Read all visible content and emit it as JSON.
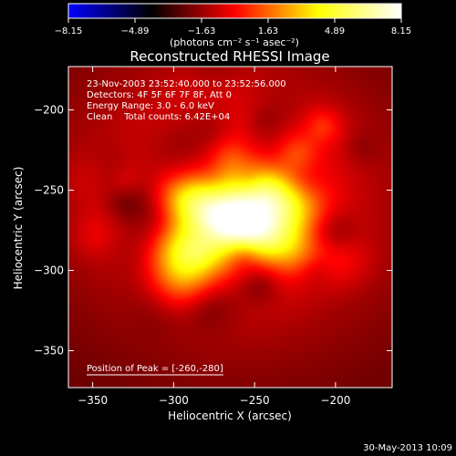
{
  "chart_data": {
    "type": "heatmap",
    "title": "Reconstructed RHESSI Image",
    "xlabel": "Heliocentric X (arcsec)",
    "ylabel": "Heliocentric Y (arcsec)",
    "xlim": [
      -365,
      -165
    ],
    "ylim": [
      -373,
      -173
    ],
    "x_ticks": [
      -350,
      -300,
      -250,
      -200
    ],
    "x_tick_labels": [
      "−350",
      "−300",
      "−250",
      "−200"
    ],
    "y_ticks": [
      -200,
      -250,
      -300,
      -350
    ],
    "y_tick_labels": [
      "−200",
      "−250",
      "−300",
      "−350"
    ],
    "colorbar": {
      "min": -8.15,
      "max": 8.15,
      "ticks": [
        -8.15,
        -4.89,
        -1.63,
        1.63,
        4.89,
        8.15
      ],
      "tick_labels": [
        "−8.15",
        "−4.89",
        "−1.63",
        "1.63",
        "4.89",
        "8.15"
      ],
      "unit_label": "(photons cm⁻² s⁻¹ asec⁻²)",
      "colormap": [
        "#0000ff",
        "#000000",
        "#ff0000",
        "#ffff00",
        "#ffffff"
      ]
    },
    "annotations": [
      "23-Nov-2003 23:52:40.000 to 23:52:56.000",
      "Detectors: 4F 5F 6F 7F 8F, Att 0",
      "Energy Range: 3.0 - 6.0 keV",
      "Clean    Total counts: 6.42E+04"
    ],
    "peak_label": "Position of Peak = [-260,-280]",
    "peak": [
      -260,
      -280
    ],
    "sources": [
      {
        "x": -262,
        "y": -270,
        "amp": 8.0,
        "sx": 30,
        "sy": 12,
        "rot": -25
      },
      {
        "x": -295,
        "y": -285,
        "amp": 5.0,
        "sx": 20,
        "sy": 15,
        "rot": -20
      },
      {
        "x": -240,
        "y": -255,
        "amp": 4.5,
        "sx": 22,
        "sy": 12,
        "rot": -25
      },
      {
        "x": -265,
        "y": -255,
        "amp": 3.0,
        "sx": 70,
        "sy": 62,
        "rot": -10
      }
    ],
    "background": -2.5
  },
  "footer": {
    "date": "30-May-2013 10:09"
  }
}
